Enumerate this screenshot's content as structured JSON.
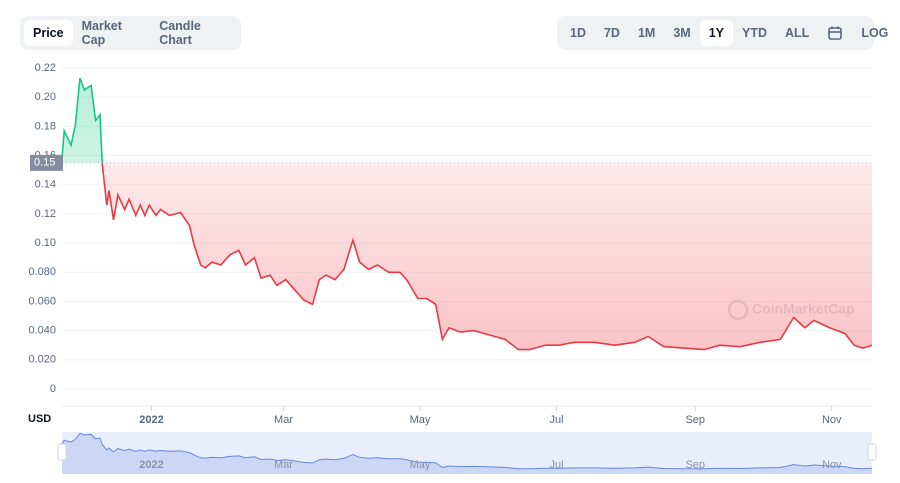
{
  "tabs": [
    "Price",
    "Market Cap",
    "Candle Chart"
  ],
  "ranges": [
    "1D",
    "7D",
    "1M",
    "3M",
    "1Y",
    "YTD",
    "ALL",
    "LOG"
  ],
  "chart_data": {
    "type": "line",
    "watermark": "CoinMarketCap",
    "currency": "USD",
    "reference": {
      "value": 0.155,
      "label": "0.15"
    },
    "x": [
      0,
      1,
      4,
      6,
      8,
      10,
      13,
      15,
      17,
      18,
      20,
      21,
      23,
      25,
      28,
      30,
      33,
      35,
      37,
      39,
      42,
      44,
      48,
      53,
      57,
      59,
      62,
      64,
      67,
      71,
      75,
      79,
      82,
      86,
      89,
      93,
      96,
      100,
      104,
      108,
      112,
      115,
      118,
      122,
      126,
      130,
      133,
      137,
      141,
      146,
      151,
      154,
      159,
      163,
      167,
      170,
      173,
      178,
      184,
      191,
      198,
      204,
      209,
      216,
      222,
      229,
      238,
      247,
      256,
      262,
      269,
      278,
      287,
      294,
      303,
      312,
      321,
      327,
      332,
      336,
      343,
      350,
      354,
      358,
      362
    ],
    "series": [
      {
        "name": "Price",
        "color": "#ea3943",
        "up_color": "#16c784",
        "values": [
          0.158,
          0.177,
          0.167,
          0.181,
          0.213,
          0.205,
          0.208,
          0.184,
          0.188,
          0.154,
          0.126,
          0.136,
          0.116,
          0.133,
          0.123,
          0.13,
          0.119,
          0.126,
          0.119,
          0.126,
          0.119,
          0.123,
          0.119,
          0.121,
          0.112,
          0.099,
          0.085,
          0.083,
          0.087,
          0.085,
          0.092,
          0.095,
          0.085,
          0.09,
          0.076,
          0.078,
          0.071,
          0.075,
          0.068,
          0.061,
          0.058,
          0.075,
          0.078,
          0.075,
          0.082,
          0.102,
          0.087,
          0.082,
          0.085,
          0.08,
          0.08,
          0.075,
          0.062,
          0.062,
          0.058,
          0.034,
          0.042,
          0.039,
          0.04,
          0.037,
          0.034,
          0.027,
          0.027,
          0.03,
          0.03,
          0.032,
          0.032,
          0.03,
          0.032,
          0.036,
          0.029,
          0.028,
          0.027,
          0.03,
          0.029,
          0.032,
          0.034,
          0.049,
          0.042,
          0.047,
          0.042,
          0.038,
          0.03,
          0.028,
          0.03
        ]
      }
    ],
    "xlim": [
      0,
      362
    ],
    "xticks": [
      {
        "value": 40,
        "label": "2022"
      },
      {
        "value": 99,
        "label": "Mar"
      },
      {
        "value": 160,
        "label": "May"
      },
      {
        "value": 221,
        "label": "Jul"
      },
      {
        "value": 283,
        "label": "Sep"
      },
      {
        "value": 344,
        "label": "Nov"
      }
    ],
    "ylim": [
      0,
      0.22
    ],
    "yticks": [
      0,
      {
        "value": 0.02,
        "label": "0.020"
      },
      {
        "value": 0.04,
        "label": "0.040"
      },
      {
        "value": 0.06,
        "label": "0.060"
      },
      {
        "value": 0.08,
        "label": "0.080"
      },
      {
        "value": 0.1,
        "label": "0.10"
      },
      {
        "value": 0.12,
        "label": "0.12"
      },
      {
        "value": 0.14,
        "label": "0.14"
      },
      {
        "value": 0.16,
        "label": "0.16"
      },
      {
        "value": 0.18,
        "label": "0.18"
      },
      {
        "value": 0.2,
        "label": "0.20"
      },
      0.22
    ],
    "grid": true
  }
}
